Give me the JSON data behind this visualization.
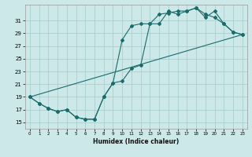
{
  "xlabel": "Humidex (Indice chaleur)",
  "bg_color": "#cce8e8",
  "grid_color": "#aacece",
  "line_color": "#1a6b6b",
  "xlim": [
    -0.5,
    23.5
  ],
  "ylim": [
    14.0,
    33.5
  ],
  "xticks": [
    0,
    1,
    2,
    3,
    4,
    5,
    6,
    7,
    8,
    9,
    10,
    11,
    12,
    13,
    14,
    15,
    16,
    17,
    18,
    19,
    20,
    21,
    22,
    23
  ],
  "yticks": [
    15,
    17,
    19,
    21,
    23,
    25,
    27,
    29,
    31
  ],
  "line1_x": [
    0,
    1,
    2,
    3,
    4,
    5,
    6,
    7,
    8,
    9,
    10,
    11,
    12,
    13,
    14,
    15,
    16,
    17,
    18,
    19,
    20,
    21,
    22,
    23
  ],
  "line1_y": [
    19.0,
    18.0,
    17.2,
    16.7,
    17.0,
    15.8,
    15.5,
    15.5,
    19.0,
    21.2,
    28.0,
    30.2,
    30.5,
    30.5,
    32.0,
    32.2,
    32.5,
    32.5,
    33.0,
    31.5,
    32.5,
    30.5,
    29.2,
    28.8
  ],
  "line2_x": [
    0,
    1,
    2,
    3,
    4,
    5,
    6,
    7,
    8,
    9,
    10,
    11,
    12,
    13,
    14,
    15,
    16,
    17,
    18,
    19,
    20,
    21,
    22,
    23
  ],
  "line2_y": [
    19.0,
    18.0,
    17.2,
    16.7,
    17.0,
    15.8,
    15.5,
    15.5,
    19.0,
    21.2,
    21.5,
    23.5,
    24.0,
    30.5,
    30.5,
    32.5,
    32.0,
    32.5,
    33.0,
    32.0,
    31.5,
    30.5,
    29.2,
    28.8
  ],
  "line3_x": [
    0,
    23
  ],
  "line3_y": [
    19.0,
    28.8
  ]
}
